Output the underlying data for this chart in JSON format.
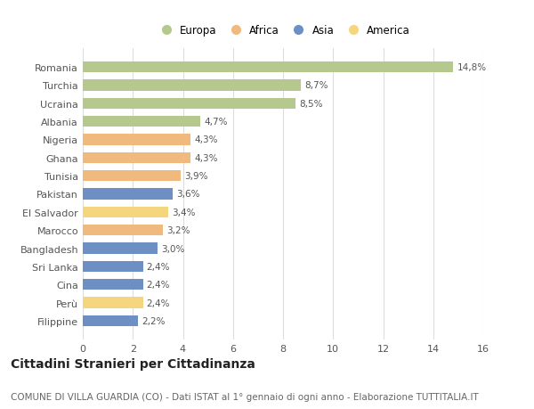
{
  "categories": [
    "Filippine",
    "Perù",
    "Cina",
    "Sri Lanka",
    "Bangladesh",
    "Marocco",
    "El Salvador",
    "Pakistan",
    "Tunisia",
    "Ghana",
    "Nigeria",
    "Albania",
    "Ucraina",
    "Turchia",
    "Romania"
  ],
  "values": [
    2.2,
    2.4,
    2.4,
    2.4,
    3.0,
    3.2,
    3.4,
    3.6,
    3.9,
    4.3,
    4.3,
    4.7,
    8.5,
    8.7,
    14.8
  ],
  "labels": [
    "2,2%",
    "2,4%",
    "2,4%",
    "2,4%",
    "3,0%",
    "3,2%",
    "3,4%",
    "3,6%",
    "3,9%",
    "4,3%",
    "4,3%",
    "4,7%",
    "8,5%",
    "8,7%",
    "14,8%"
  ],
  "continents": [
    "Asia",
    "America",
    "Asia",
    "Asia",
    "Asia",
    "Africa",
    "America",
    "Asia",
    "Africa",
    "Africa",
    "Africa",
    "Europa",
    "Europa",
    "Europa",
    "Europa"
  ],
  "continent_colors": {
    "Europa": "#b5c98e",
    "Africa": "#f0b97e",
    "Asia": "#6e8fc4",
    "America": "#f5d57e"
  },
  "legend_order": [
    "Europa",
    "Africa",
    "Asia",
    "America"
  ],
  "title": "Cittadini Stranieri per Cittadinanza",
  "subtitle": "COMUNE DI VILLA GUARDIA (CO) - Dati ISTAT al 1° gennaio di ogni anno - Elaborazione TUTTITALIA.IT",
  "xlim": [
    0,
    16
  ],
  "xticks": [
    0,
    2,
    4,
    6,
    8,
    10,
    12,
    14,
    16
  ],
  "background_color": "#ffffff",
  "grid_color": "#dddddd",
  "bar_height": 0.6,
  "title_fontsize": 10,
  "subtitle_fontsize": 7.5,
  "label_fontsize": 7.5,
  "tick_fontsize": 8,
  "legend_fontsize": 8.5
}
